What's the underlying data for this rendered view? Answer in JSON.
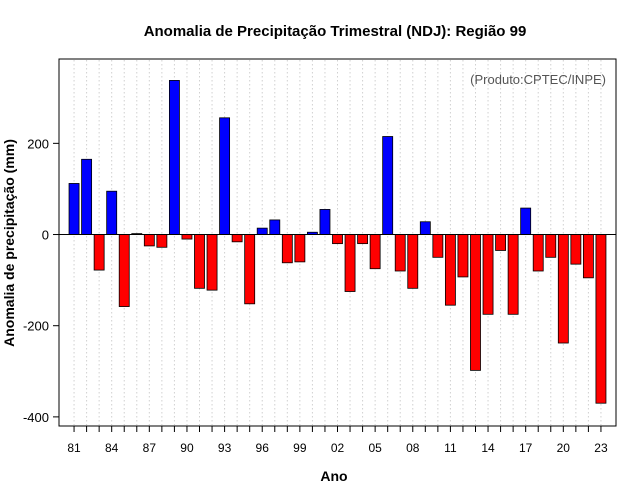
{
  "chart_data": {
    "type": "bar",
    "title": "Anomalia de Precipitação Trimestral (NDJ): Região 99",
    "xlabel": "Ano",
    "ylabel": "Anomalia de precipitação (mm)",
    "annotation": "(Produto:CPTEC/INPE)",
    "ylim": [
      -420,
      385
    ],
    "yticks": [
      -400,
      -200,
      0,
      200
    ],
    "xtick_labels": [
      "81",
      "84",
      "87",
      "90",
      "93",
      "96",
      "99",
      "02",
      "05",
      "08",
      "11",
      "14",
      "17",
      "20",
      "23"
    ],
    "xtick_positions": [
      1981,
      1984,
      1987,
      1990,
      1993,
      1996,
      1999,
      2002,
      2005,
      2008,
      2011,
      2014,
      2017,
      2020,
      2023
    ],
    "xlim": [
      1979.8,
      2024.2
    ],
    "years": [
      1981,
      1982,
      1983,
      1984,
      1985,
      1986,
      1987,
      1988,
      1989,
      1990,
      1991,
      1992,
      1993,
      1994,
      1995,
      1996,
      1997,
      1998,
      1999,
      2000,
      2001,
      2002,
      2003,
      2004,
      2005,
      2006,
      2007,
      2008,
      2009,
      2010,
      2011,
      2012,
      2013,
      2014,
      2015,
      2016,
      2017,
      2018,
      2019,
      2020,
      2021,
      2022,
      2023
    ],
    "values": [
      112,
      165,
      -78,
      95,
      -158,
      2,
      -25,
      -28,
      338,
      -10,
      -118,
      -122,
      256,
      -16,
      -152,
      14,
      32,
      -62,
      -60,
      5,
      55,
      -20,
      -125,
      -20,
      -75,
      215,
      -80,
      -118,
      28,
      -50,
      -155,
      -93,
      -298,
      -175,
      -35,
      -175,
      58,
      -80,
      -50,
      -238,
      -65,
      -95,
      -370
    ],
    "positive_color": "#0000ff",
    "negative_color": "#ff0000",
    "grid": true
  }
}
